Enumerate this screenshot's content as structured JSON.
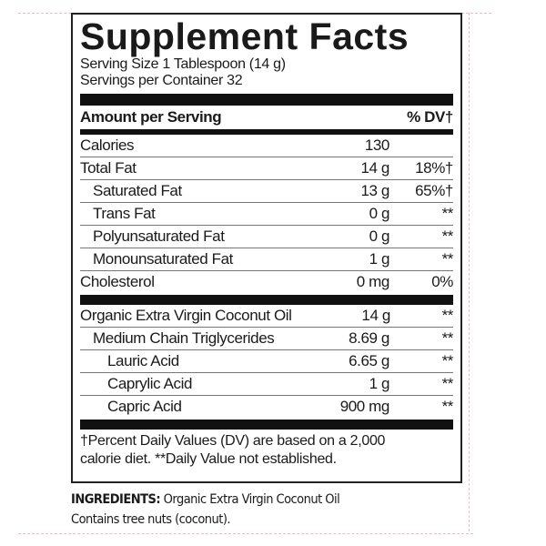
{
  "title": "Supplement Facts",
  "serving_size": "Serving Size 1 Tablespoon (14 g)",
  "servings_per_container": "Servings per Container 32",
  "header": {
    "amount_label": "Amount per Serving",
    "dv_label": "% DV†"
  },
  "nutrients": [
    {
      "name": "Calories",
      "amount": "130",
      "dv": ""
    },
    {
      "name": "Total Fat",
      "amount": "14 g",
      "dv": "18%†"
    },
    {
      "name": "Saturated Fat",
      "amount": "13 g",
      "dv": "65%†"
    },
    {
      "name": "Trans Fat",
      "amount": "0 g",
      "dv": "**"
    },
    {
      "name": "Polyunsaturated Fat",
      "amount": "0 g",
      "dv": "**"
    },
    {
      "name": "Monounsaturated Fat",
      "amount": "1 g",
      "dv": "**"
    },
    {
      "name": "Cholesterol",
      "amount": "0 mg",
      "dv": "0%"
    }
  ],
  "ingredients_rows": [
    {
      "name": "Organic Extra Virgin Coconut Oil",
      "amount": "14 g",
      "dv": "**"
    },
    {
      "name": "Medium Chain Triglycerides",
      "amount": "8.69 g",
      "dv": "**"
    },
    {
      "name": "Lauric Acid",
      "amount": "6.65 g",
      "dv": "**"
    },
    {
      "name": "Caprylic Acid",
      "amount": "1 g",
      "dv": "**"
    },
    {
      "name": "Capric Acid",
      "amount": "900 mg",
      "dv": "**"
    }
  ],
  "footnote_1": "†Percent Daily Values (DV) are based on a 2,000",
  "footnote_2": "calorie diet. **Daily Value not established.",
  "ingredients": {
    "label": "INGREDIENTS:",
    "text": " Organic Extra Virgin Coconut Oil",
    "allergen": "Contains tree nuts (coconut)."
  }
}
